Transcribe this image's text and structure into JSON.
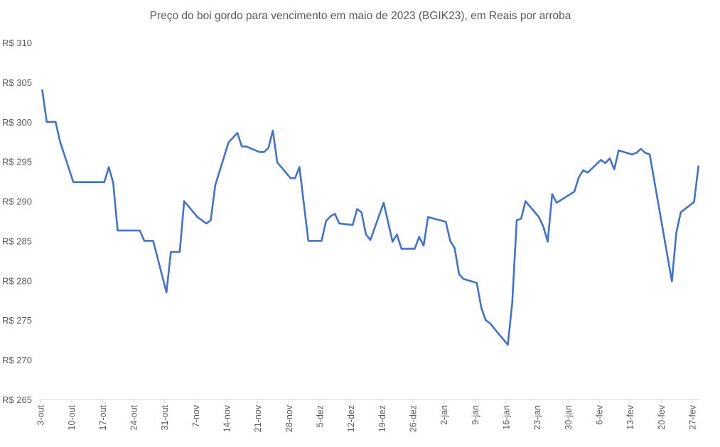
{
  "chart_data": {
    "type": "line",
    "title": "Preço do boi gordo para vencimento em maio de 2023 (BGIK23), em Reais por arroba",
    "xlabel": "",
    "ylabel": "",
    "ylim": [
      265,
      310
    ],
    "xlim_days": [
      0,
      148
    ],
    "x_unit": "days since 3-out",
    "grid": false,
    "line_color": "#4472C4",
    "y_ticks": [
      265,
      270,
      275,
      280,
      285,
      290,
      295,
      300,
      305,
      310
    ],
    "y_tick_labels": [
      "R$ 265",
      "R$ 270",
      "R$ 275",
      "R$ 280",
      "R$ 285",
      "R$ 290",
      "R$ 295",
      "R$ 300",
      "R$ 305",
      "R$ 310"
    ],
    "x_ticks_days": [
      0,
      7,
      14,
      21,
      28,
      35,
      42,
      49,
      56,
      63,
      70,
      77,
      84,
      91,
      98,
      105,
      112,
      119,
      126,
      133,
      140,
      147
    ],
    "x_tick_labels": [
      "3-out",
      "10-out",
      "17-out",
      "24-out",
      "31-out",
      "7-nov",
      "14-nov",
      "21-nov",
      "28-nov",
      "5-dez",
      "12-dez",
      "19-dez",
      "26-dez",
      "2-jan",
      "9-jan",
      "16-jan",
      "23-jan",
      "30-jan",
      "6-fev",
      "13-fev",
      "20-fev",
      "27-fev"
    ],
    "series": [
      {
        "name": "BGIK23",
        "x": [
          0,
          1,
          3,
          4,
          7,
          14,
          15,
          16,
          17,
          22,
          23,
          25,
          28,
          29,
          31,
          32,
          35,
          37,
          38,
          39,
          42,
          44,
          45,
          46,
          49,
          50,
          51,
          52,
          53,
          56,
          57,
          58,
          60,
          63,
          64,
          65,
          66,
          67,
          70,
          71,
          72,
          73,
          74,
          77,
          79,
          80,
          81,
          84,
          85,
          86,
          87,
          91,
          92,
          93,
          94,
          95,
          98,
          99,
          100,
          101,
          102,
          105,
          106,
          107,
          108,
          109,
          112,
          113,
          114,
          115,
          116,
          120,
          121,
          122,
          123,
          126,
          127,
          128,
          129,
          130,
          133,
          134,
          135,
          136,
          137,
          142,
          143,
          144,
          147,
          148
        ],
        "values": [
          304,
          300,
          300,
          297.5,
          292.4,
          292.4,
          294.3,
          292.3,
          286.3,
          286.3,
          285,
          285,
          278.5,
          283.6,
          283.6,
          290,
          288,
          287.2,
          287.6,
          292,
          297.4,
          298.6,
          296.9,
          296.9,
          296.2,
          296.2,
          296.7,
          298.9,
          294.9,
          292.9,
          292.9,
          294.3,
          285,
          285,
          287.5,
          288.1,
          288.4,
          287.2,
          287,
          289,
          288.6,
          285.8,
          285.1,
          289.8,
          284.9,
          285.8,
          284,
          284,
          285.5,
          284.4,
          288,
          287.4,
          285,
          284.1,
          280.8,
          280.2,
          279.7,
          276.6,
          275,
          274.6,
          273.9,
          271.9,
          277.2,
          287.6,
          287.8,
          290,
          288,
          286.8,
          284.9,
          290.9,
          289.8,
          291.2,
          293,
          293.9,
          293.6,
          295.2,
          294.8,
          295.4,
          294,
          296.4,
          295.9,
          296.1,
          296.6,
          296.1,
          295.9,
          279.9,
          286,
          288.6,
          289.9,
          294.4
        ]
      }
    ]
  }
}
